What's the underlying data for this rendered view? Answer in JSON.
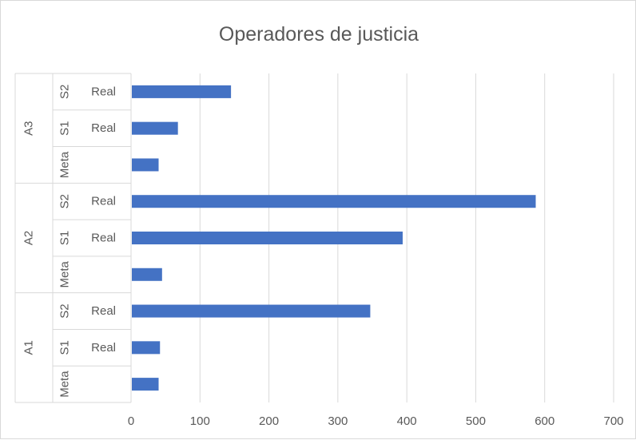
{
  "chart_data": {
    "type": "bar",
    "orientation": "horizontal",
    "title": "Operadores de justicia",
    "xlim": [
      0,
      700
    ],
    "x_ticks": [
      "0",
      "100",
      "200",
      "300",
      "400",
      "500",
      "600",
      "700"
    ],
    "grid": true,
    "legend": "none",
    "groups": [
      {
        "label": "A1",
        "items": [
          {
            "sub": "Meta",
            "label": "",
            "value": 40
          },
          {
            "sub": "S1",
            "label": "Real",
            "value": 42
          },
          {
            "sub": "S2",
            "label": "Real",
            "value": 347
          }
        ]
      },
      {
        "label": "A2",
        "items": [
          {
            "sub": "Meta",
            "label": "",
            "value": 45
          },
          {
            "sub": "S1",
            "label": "Real",
            "value": 394
          },
          {
            "sub": "S2",
            "label": "Real",
            "value": 587
          }
        ]
      },
      {
        "label": "A3",
        "items": [
          {
            "sub": "Meta",
            "label": "",
            "value": 40
          },
          {
            "sub": "S1",
            "label": "Real",
            "value": 68
          },
          {
            "sub": "S2",
            "label": "Real",
            "value": 145
          }
        ]
      }
    ],
    "bar_color": "#4472c4",
    "grid_color": "#d9d9d9",
    "text_color": "#595959"
  }
}
